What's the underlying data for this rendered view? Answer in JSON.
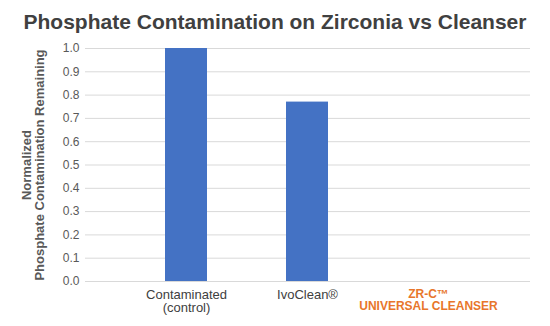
{
  "chart_data": {
    "type": "bar",
    "title": "Phosphate Contamination on Zirconia vs Cleanser",
    "ylabel": "Normalized Phosphate Contamination Remaining",
    "categories": [
      "Contaminated\n(control)",
      "IvoClean®",
      "ZR-C™\nUNIVERSAL CLEANSER"
    ],
    "values": [
      1.0,
      0.77,
      0
    ],
    "color": "#4472c4",
    "ylim": [
      0,
      1
    ],
    "yticks": [
      {
        "value": 0,
        "label": "0.0"
      },
      0.1,
      0.2,
      0.3,
      0.4,
      0.5,
      0.6,
      0.7,
      0.8,
      0.9,
      {
        "value": 1,
        "label": "1.0"
      }
    ],
    "grid": true
  }
}
